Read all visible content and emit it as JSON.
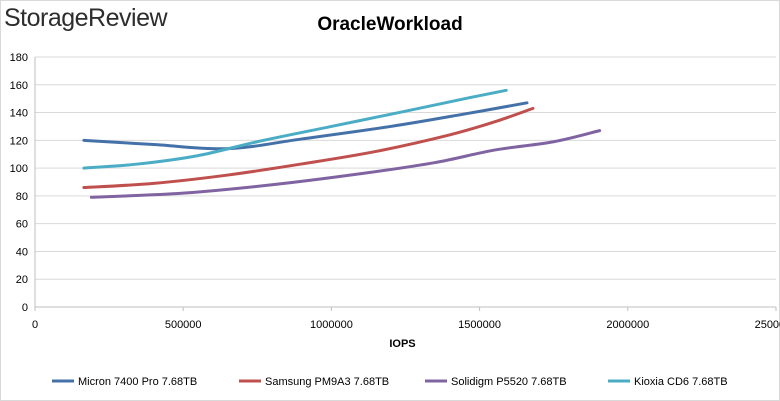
{
  "brand": {
    "text": "StorageReview"
  },
  "chart_data": {
    "type": "line",
    "title": "OracleWorkload",
    "xlabel": "IOPS",
    "ylabel": "",
    "xlim": [
      0,
      2500000
    ],
    "ylim": [
      0,
      180
    ],
    "x_ticks": [
      "0",
      "500000",
      "1000000",
      "1500000",
      "2000000",
      "2500000"
    ],
    "y_ticks": [
      "0",
      "20",
      "40",
      "60",
      "80",
      "100",
      "120",
      "140",
      "160",
      "180"
    ],
    "grid": "horizontal",
    "legend": "bottom",
    "series": [
      {
        "name": "Micron 7400 Pro 7.68TB",
        "color": "#4472a8",
        "points": [
          [
            165000,
            120
          ],
          [
            400000,
            117
          ],
          [
            650000,
            114
          ],
          [
            900000,
            121
          ],
          [
            1200000,
            130
          ],
          [
            1450000,
            139
          ],
          [
            1660000,
            147
          ]
        ]
      },
      {
        "name": "Samsung PM9A3 7.68TB",
        "color": "#c0504d",
        "points": [
          [
            165000,
            86
          ],
          [
            400000,
            89
          ],
          [
            650000,
            95
          ],
          [
            900000,
            103
          ],
          [
            1150000,
            112
          ],
          [
            1400000,
            124
          ],
          [
            1560000,
            134
          ],
          [
            1680000,
            143
          ]
        ]
      },
      {
        "name": "Solidigm P5520 7.68TB",
        "color": "#8064a2",
        "points": [
          [
            190000,
            79
          ],
          [
            500000,
            82
          ],
          [
            800000,
            88
          ],
          [
            1100000,
            96
          ],
          [
            1350000,
            104
          ],
          [
            1550000,
            113
          ],
          [
            1750000,
            119
          ],
          [
            1905000,
            127
          ]
        ]
      },
      {
        "name": "Kioxia CD6 7.68TB",
        "color": "#4bacc6",
        "points": [
          [
            165000,
            100
          ],
          [
            350000,
            103
          ],
          [
            550000,
            109
          ],
          [
            750000,
            119
          ],
          [
            1000000,
            130
          ],
          [
            1250000,
            141
          ],
          [
            1450000,
            150
          ],
          [
            1590000,
            156
          ]
        ]
      }
    ]
  }
}
